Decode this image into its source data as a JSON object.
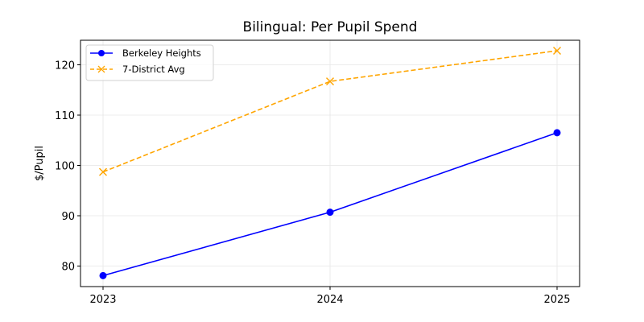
{
  "chart_data": {
    "type": "line",
    "title": "Bilingual: Per Pupil Spend",
    "xlabel": "",
    "ylabel": "$/Pupil",
    "categories": [
      "2023",
      "2024",
      "2025"
    ],
    "series": [
      {
        "name": "Berkeley Heights",
        "values": [
          78.1,
          90.7,
          106.5
        ],
        "color": "#0000ff",
        "style": "solid",
        "marker": "circle"
      },
      {
        "name": "7-District Avg",
        "values": [
          98.7,
          116.7,
          122.8
        ],
        "color": "#ffa500",
        "style": "dashed",
        "marker": "x"
      }
    ],
    "yticks": [
      80,
      90,
      100,
      110,
      120
    ],
    "ylim": [
      76.1,
      124.8
    ],
    "grid": true,
    "legend_position": "upper left"
  }
}
